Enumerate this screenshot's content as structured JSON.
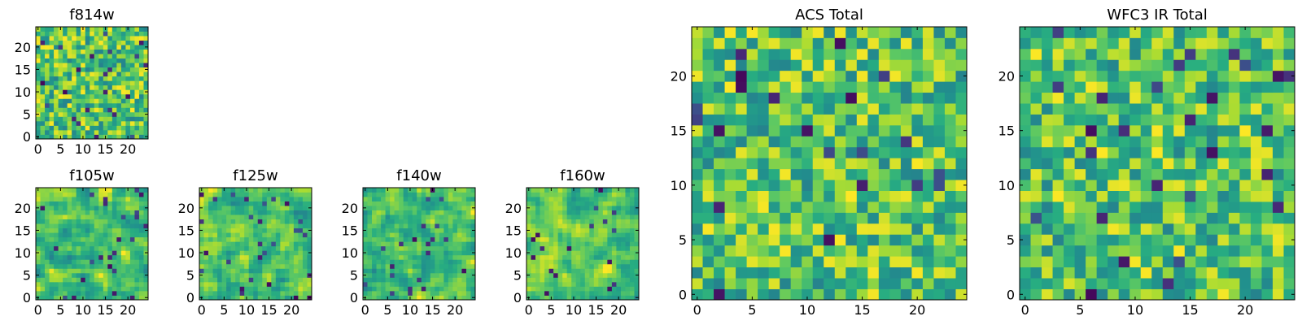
{
  "figure": {
    "background": "#ffffff",
    "colormap": "viridis"
  },
  "chart_data": [
    {
      "id": "f814w",
      "type": "heatmap",
      "title": "f814w",
      "grid_size": 25,
      "xlim": [
        0,
        24
      ],
      "ylim": [
        0,
        24
      ],
      "xticks": [
        0,
        5,
        10,
        15,
        20
      ],
      "yticks": [
        0,
        5,
        10,
        15,
        20
      ],
      "noise": "fine",
      "seed": 11
    },
    {
      "id": "f105w",
      "type": "heatmap",
      "title": "f105w",
      "grid_size": 25,
      "xlim": [
        0,
        24
      ],
      "ylim": [
        0,
        24
      ],
      "xticks": [
        0,
        5,
        10,
        15,
        20
      ],
      "yticks": [
        0,
        5,
        10,
        15,
        20
      ],
      "noise": "smooth",
      "seed": 23
    },
    {
      "id": "f125w",
      "type": "heatmap",
      "title": "f125w",
      "grid_size": 25,
      "xlim": [
        0,
        24
      ],
      "ylim": [
        0,
        24
      ],
      "xticks": [
        0,
        5,
        10,
        15,
        20
      ],
      "yticks": [
        0,
        5,
        10,
        15,
        20
      ],
      "noise": "smooth",
      "seed": 37
    },
    {
      "id": "f140w",
      "type": "heatmap",
      "title": "f140w",
      "grid_size": 25,
      "xlim": [
        0,
        24
      ],
      "ylim": [
        0,
        24
      ],
      "xticks": [
        0,
        5,
        10,
        15,
        20
      ],
      "yticks": [
        0,
        5,
        10,
        15,
        20
      ],
      "noise": "smooth",
      "seed": 41
    },
    {
      "id": "f160w",
      "type": "heatmap",
      "title": "f160w",
      "grid_size": 25,
      "xlim": [
        0,
        24
      ],
      "ylim": [
        0,
        24
      ],
      "xticks": [
        0,
        5,
        10,
        15,
        20
      ],
      "yticks": [
        0,
        5,
        10,
        15,
        20
      ],
      "noise": "smooth",
      "seed": 53
    },
    {
      "id": "acs-total",
      "type": "heatmap",
      "title": "ACS Total",
      "grid_size": 25,
      "xlim": [
        0,
        24
      ],
      "ylim": [
        0,
        24
      ],
      "xticks": [
        0,
        5,
        10,
        15,
        20
      ],
      "yticks": [
        0,
        5,
        10,
        15,
        20
      ],
      "noise": "fine",
      "seed": 67
    },
    {
      "id": "wfc3-ir-total",
      "type": "heatmap",
      "title": "WFC3 IR Total",
      "grid_size": 25,
      "xlim": [
        0,
        24
      ],
      "ylim": [
        0,
        24
      ],
      "xticks": [
        0,
        5,
        10,
        15,
        20
      ],
      "yticks": [
        0,
        5,
        10,
        15,
        20
      ],
      "noise": "fine",
      "seed": 79
    }
  ]
}
